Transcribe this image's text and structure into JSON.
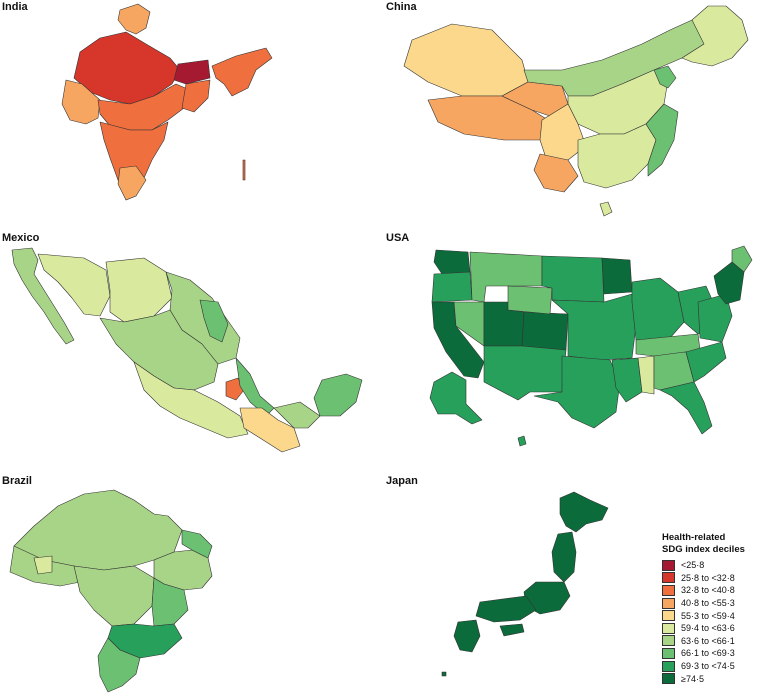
{
  "panels": {
    "india": {
      "title": "India"
    },
    "china": {
      "title": "China"
    },
    "mexico": {
      "title": "Mexico"
    },
    "usa": {
      "title": "USA"
    },
    "brazil": {
      "title": "Brazil"
    },
    "japan": {
      "title": "Japan"
    }
  },
  "legend": {
    "title_line1": "Health-related",
    "title_line2": "SDG index deciles",
    "items": [
      {
        "label": "<25·8",
        "color": "#a51931"
      },
      {
        "label": "25·8 to <32·8",
        "color": "#d7362a"
      },
      {
        "label": "32·8 to <40·8",
        "color": "#ef6f3e"
      },
      {
        "label": "40·8 to <55·3",
        "color": "#f7a662"
      },
      {
        "label": "55·3 to <59·4",
        "color": "#fbd88c"
      },
      {
        "label": "59·4 to <63·6",
        "color": "#d9ea9e"
      },
      {
        "label": "63·6 to <66·1",
        "color": "#a8d487"
      },
      {
        "label": "66·1 to <69·3",
        "color": "#6cc072"
      },
      {
        "label": "69·3 to <74·5",
        "color": "#26a05a"
      },
      {
        "label": "≥74·5",
        "color": "#0c6b3b"
      }
    ]
  }
}
